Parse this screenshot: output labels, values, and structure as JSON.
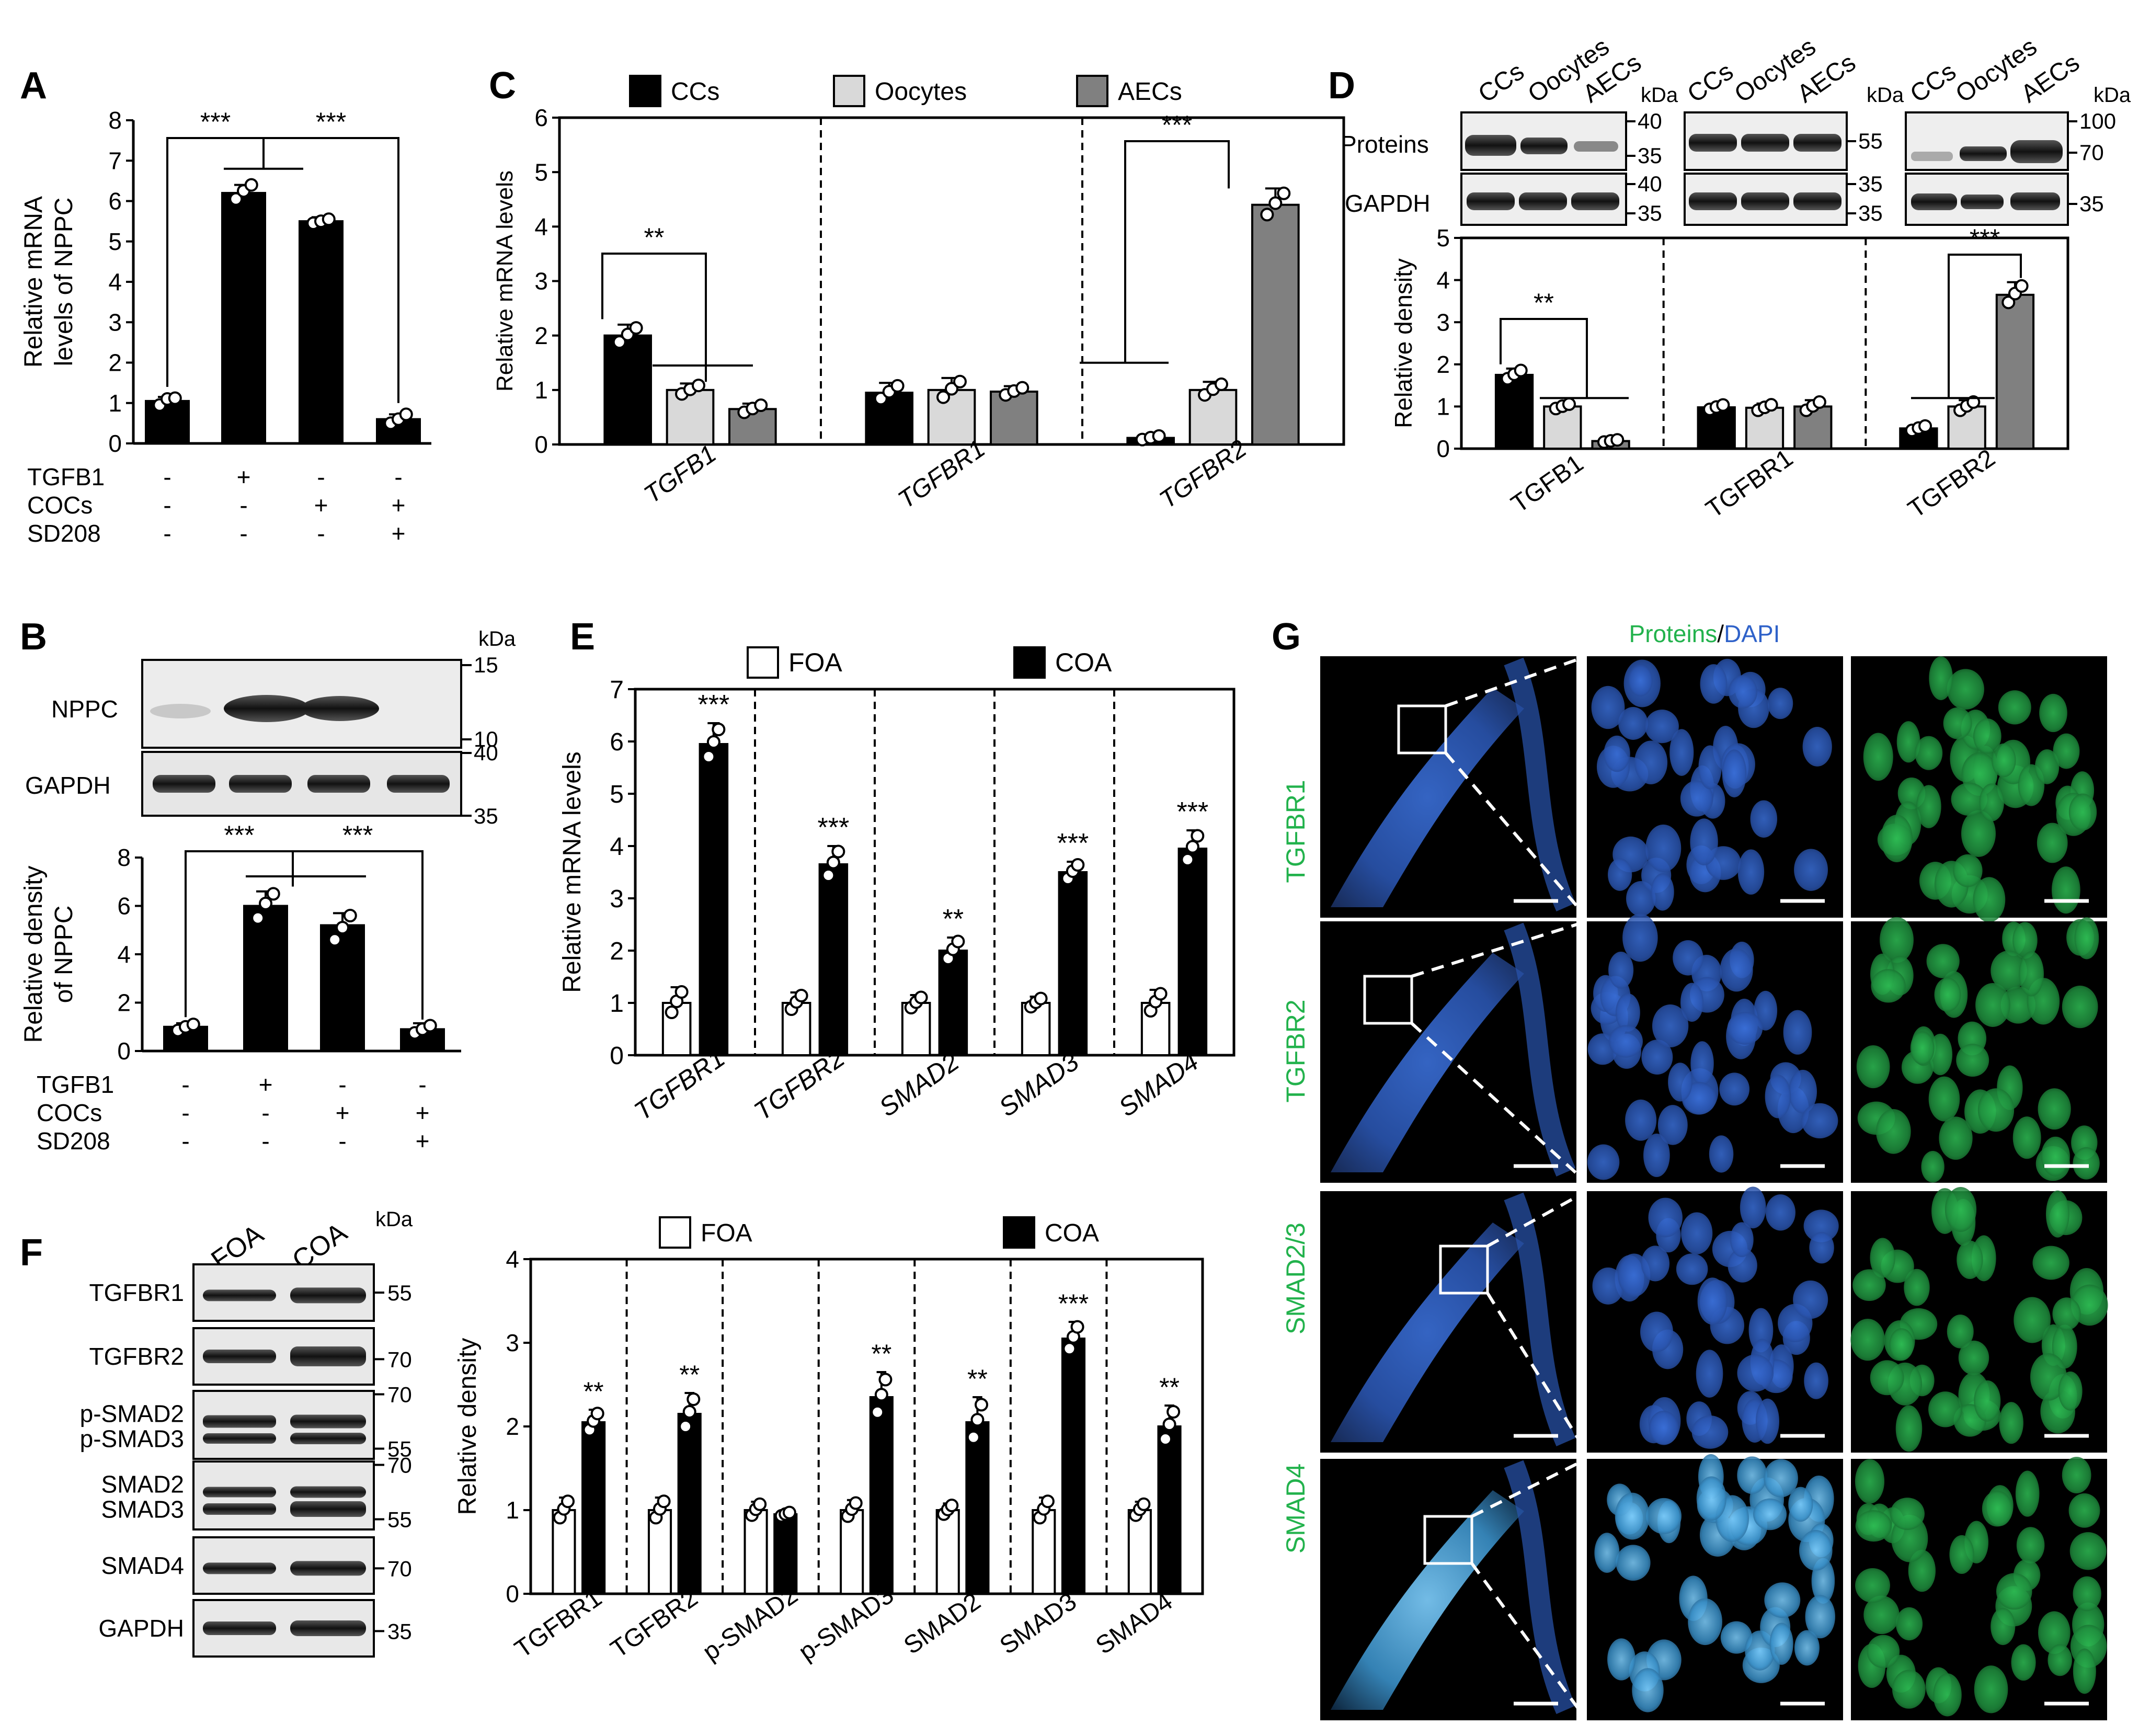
{
  "colors": {
    "black": "#000000",
    "light_gray": "#d9d9d9",
    "dark_gray": "#808080",
    "white": "#ffffff",
    "green": "#22b24c",
    "blue": "#2f62c9"
  },
  "chart_data": [
    {
      "panel": "A",
      "type": "bar",
      "ylabel": [
        "Relative mRNA",
        "levels of NPPC"
      ],
      "ylim": [
        0,
        8
      ],
      "yticks": [
        0,
        1,
        2,
        3,
        4,
        5,
        6,
        7,
        8
      ],
      "categories": [
        "1",
        "2",
        "3",
        "4"
      ],
      "values": [
        1.05,
        6.2,
        5.5,
        0.6
      ],
      "errors": [
        0.1,
        0.2,
        0.1,
        0.12
      ],
      "colors": [
        "black",
        "black",
        "black",
        "black"
      ],
      "points": [
        [
          0.95,
          1.1,
          1.12
        ],
        [
          6.05,
          6.25,
          6.4
        ],
        [
          5.45,
          5.5,
          5.55
        ],
        [
          0.5,
          0.6,
          0.72
        ]
      ],
      "conditions": [
        {
          "name": "TGFB1",
          "signs": [
            "-",
            "+",
            "-",
            "-"
          ]
        },
        {
          "name": "COCs",
          "signs": [
            "-",
            "-",
            "+",
            "+"
          ]
        },
        {
          "name": "SD208",
          "signs": [
            "-",
            "-",
            "-",
            "+"
          ]
        }
      ],
      "significance": [
        "***",
        "***"
      ]
    },
    {
      "panel": "B",
      "type": "bar",
      "ylabel": [
        "Relative density",
        "of NPPC"
      ],
      "ylim": [
        0,
        8
      ],
      "yticks": [
        0,
        2,
        4,
        6,
        8
      ],
      "categories": [
        "1",
        "2",
        "3",
        "4"
      ],
      "values": [
        1.0,
        6.0,
        5.2,
        0.9
      ],
      "errors": [
        0.15,
        0.6,
        0.5,
        0.25
      ],
      "colors": [
        "black",
        "black",
        "black",
        "black"
      ],
      "points": [
        [
          0.85,
          1.0,
          1.1
        ],
        [
          5.5,
          6.1,
          6.5
        ],
        [
          4.6,
          5.1,
          5.6
        ],
        [
          0.75,
          0.9,
          1.05
        ]
      ],
      "conditions": [
        {
          "name": "TGFB1",
          "signs": [
            "-",
            "+",
            "-",
            "-"
          ]
        },
        {
          "name": "COCs",
          "signs": [
            "-",
            "-",
            "+",
            "+"
          ]
        },
        {
          "name": "SD208",
          "signs": [
            "-",
            "-",
            "-",
            "+"
          ]
        }
      ],
      "significance": [
        "***",
        "***"
      ],
      "blot": {
        "rows": [
          "NPPC",
          "GAPDH"
        ],
        "unit": "kDa",
        "markers": [
          "15",
          "10",
          "40",
          "35"
        ]
      }
    },
    {
      "panel": "C",
      "type": "bar",
      "ylabel": "Relative mRNA levels",
      "ylim": [
        0,
        6
      ],
      "yticks": [
        0,
        1,
        2,
        3,
        4,
        5,
        6
      ],
      "legend": [
        "CCs",
        "Oocytes",
        "AECs"
      ],
      "groups": [
        "TGFB1",
        "TGFBR1",
        "TGFBR2"
      ],
      "values": [
        [
          2.0,
          1.0,
          0.65
        ],
        [
          0.95,
          1.0,
          0.97
        ],
        [
          0.12,
          1.0,
          4.4
        ]
      ],
      "errors": [
        [
          0.2,
          0.12,
          0.1
        ],
        [
          0.18,
          0.22,
          0.1
        ],
        [
          0.05,
          0.15,
          0.3
        ]
      ],
      "significance": [
        "**",
        "***"
      ]
    },
    {
      "panel": "D",
      "type": "bar",
      "ylabel": "Relative density",
      "ylim": [
        0,
        5
      ],
      "yticks": [
        0,
        1,
        2,
        3,
        4,
        5
      ],
      "legend": [
        "CCs",
        "Oocytes",
        "AECs"
      ],
      "groups": [
        "TGFB1",
        "TGFBR1",
        "TGFBR2"
      ],
      "values": [
        [
          1.75,
          1.0,
          0.18
        ],
        [
          0.98,
          0.97,
          1.0
        ],
        [
          0.48,
          1.0,
          3.65
        ]
      ],
      "errors": [
        [
          0.15,
          0.08,
          0.04
        ],
        [
          0.08,
          0.1,
          0.15
        ],
        [
          0.08,
          0.15,
          0.3
        ]
      ],
      "significance": [
        "**",
        "***"
      ],
      "blot": {
        "rows": [
          "Proteins",
          "GAPDH"
        ],
        "unit": "kDa",
        "lanes": [
          "CCs",
          "Oocytes",
          "AECs"
        ],
        "markers": [
          "40",
          "35",
          "55",
          "100",
          "70",
          "40",
          "35",
          "35",
          "35"
        ]
      }
    },
    {
      "panel": "E",
      "type": "bar",
      "ylabel": "Relative mRNA levels",
      "ylim": [
        0,
        7
      ],
      "yticks": [
        0,
        1,
        2,
        3,
        4,
        5,
        6,
        7
      ],
      "legend": [
        "FOA",
        "COA"
      ],
      "groups": [
        "TGFBR1",
        "TGFBR2",
        "SMAD2",
        "SMAD3",
        "SMAD4"
      ],
      "values": [
        [
          1.0,
          5.95
        ],
        [
          1.0,
          3.65
        ],
        [
          1.0,
          2.0
        ],
        [
          1.0,
          3.5
        ],
        [
          1.0,
          3.95
        ]
      ],
      "errors": [
        [
          0.3,
          0.4
        ],
        [
          0.2,
          0.35
        ],
        [
          0.15,
          0.25
        ],
        [
          0.12,
          0.2
        ],
        [
          0.25,
          0.35
        ]
      ],
      "significance": [
        "***",
        "***",
        "**",
        "***",
        "***"
      ]
    },
    {
      "panel": "F",
      "type": "bar",
      "ylabel": "Relative density",
      "ylim": [
        0,
        4
      ],
      "yticks": [
        0,
        1,
        2,
        3,
        4
      ],
      "legend": [
        "FOA",
        "COA"
      ],
      "groups": [
        "TGFBR1",
        "TGFBR2",
        "p-SMAD2",
        "p-SMAD3",
        "SMAD2",
        "SMAD3",
        "SMAD4"
      ],
      "values": [
        [
          1.0,
          2.05
        ],
        [
          1.0,
          2.15
        ],
        [
          1.0,
          0.95
        ],
        [
          1.0,
          2.35
        ],
        [
          1.0,
          2.05
        ],
        [
          1.0,
          3.05
        ],
        [
          1.0,
          2.0
        ]
      ],
      "errors": [
        [
          0.15,
          0.15
        ],
        [
          0.15,
          0.25
        ],
        [
          0.1,
          0.03
        ],
        [
          0.12,
          0.3
        ],
        [
          0.08,
          0.3
        ],
        [
          0.15,
          0.2
        ],
        [
          0.1,
          0.25
        ]
      ],
      "significance": [
        "**",
        "**",
        "",
        "**",
        "**",
        "***",
        "**"
      ],
      "blot": {
        "lanes": [
          "FOA",
          "COA"
        ],
        "unit": "kDa",
        "rows": [
          "TGFBR1",
          "TGFBR2",
          "p-SMAD2",
          "p-SMAD3",
          "SMAD2",
          "SMAD3",
          "SMAD4",
          "GAPDH"
        ],
        "markers": [
          "55",
          "70",
          "70",
          "55",
          "70",
          "55",
          "70",
          "35"
        ]
      }
    }
  ],
  "panel_g": {
    "title_proteins": "Proteins",
    "title_sep": "/",
    "title_dapi": "DAPI",
    "rows": [
      "TGFBR1",
      "TGFBR2",
      "SMAD2/3",
      "SMAD4"
    ]
  }
}
